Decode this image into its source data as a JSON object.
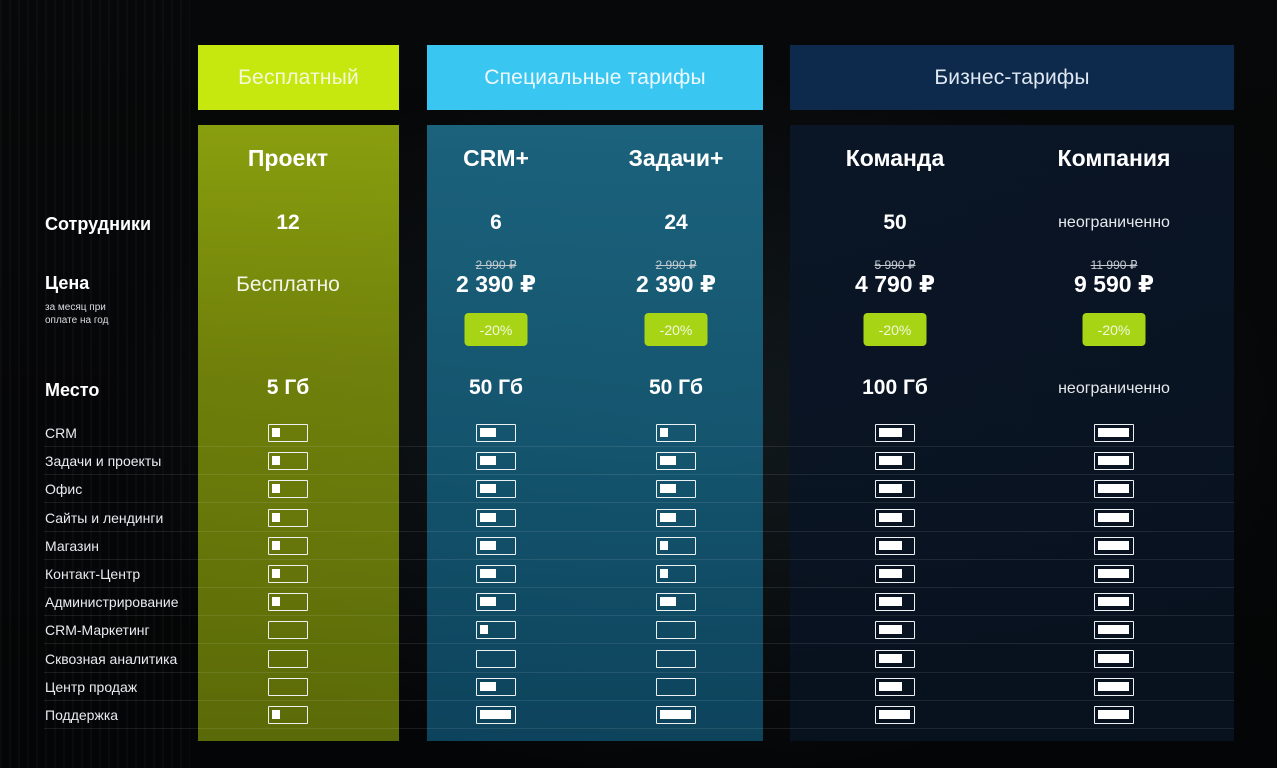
{
  "headers": {
    "free": "Бесплатный",
    "special": "Специальные тарифы",
    "business": "Бизнес-тарифы"
  },
  "labels": {
    "employees": "Сотрудники",
    "price": "Цена",
    "price_note_line1": "за месяц при",
    "price_note_line2": "оплате на год",
    "storage": "Место"
  },
  "plans": [
    {
      "name": "Проект",
      "employees": "12",
      "old_price": "",
      "price": "Бесплатно",
      "discount": "",
      "storage": "5 Гб"
    },
    {
      "name": "CRM+",
      "employees": "6",
      "old_price": "2 990 ₽",
      "price": "2 390 ₽",
      "discount": "-20%",
      "storage": "50 Гб"
    },
    {
      "name": "Задачи+",
      "employees": "24",
      "old_price": "2 990 ₽",
      "price": "2 390 ₽",
      "discount": "-20%",
      "storage": "50 Гб"
    },
    {
      "name": "Команда",
      "employees": "50",
      "old_price": "5 990 ₽",
      "price": "4 790 ₽",
      "discount": "-20%",
      "storage": "100 Гб"
    },
    {
      "name": "Компания",
      "employees": "неограниченно",
      "old_price": "11 990 ₽",
      "price": "9 590 ₽",
      "discount": "-20%",
      "storage": "неограниченно"
    }
  ],
  "features": [
    {
      "label": "CRM",
      "levels": [
        0.25,
        0.5,
        0.25,
        0.75,
        1.0
      ]
    },
    {
      "label": "Задачи и проекты",
      "levels": [
        0.25,
        0.5,
        0.5,
        0.75,
        1.0
      ]
    },
    {
      "label": "Офис",
      "levels": [
        0.25,
        0.5,
        0.5,
        0.75,
        1.0
      ]
    },
    {
      "label": "Сайты и лендинги",
      "levels": [
        0.25,
        0.5,
        0.5,
        0.75,
        1.0
      ]
    },
    {
      "label": "Магазин",
      "levels": [
        0.25,
        0.5,
        0.25,
        0.75,
        1.0
      ]
    },
    {
      "label": "Контакт-Центр",
      "levels": [
        0.25,
        0.5,
        0.25,
        0.75,
        1.0
      ]
    },
    {
      "label": "Администрирование",
      "levels": [
        0.25,
        0.5,
        0.5,
        0.75,
        1.0
      ]
    },
    {
      "label": "CRM-Маркетинг",
      "levels": [
        0,
        0.25,
        0,
        0.75,
        1.0
      ]
    },
    {
      "label": "Сквозная аналитика",
      "levels": [
        0,
        0,
        0,
        0.75,
        1.0
      ]
    },
    {
      "label": "Центр продаж",
      "levels": [
        0,
        0.5,
        0,
        0.75,
        1.0
      ]
    },
    {
      "label": "Поддержка",
      "levels": [
        0.25,
        1.0,
        1.0,
        1.0,
        1.0
      ]
    }
  ],
  "colors": {
    "free_accent": "#c6e80f",
    "special_accent": "#39c7f2",
    "business_accent": "#0d2a4c",
    "discount_badge": "#a8d416"
  }
}
